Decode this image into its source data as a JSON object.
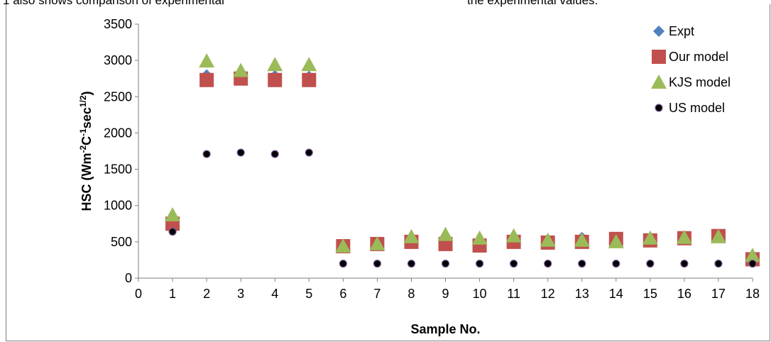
{
  "header_text": {
    "left": "also  shows  comparison  of  experimental",
    "right": "the experimental values."
  },
  "chart_data": {
    "type": "scatter",
    "title": "",
    "xlabel": "Sample No.",
    "ylabel": {
      "base": "HSC (Wm",
      "sup1": "-2",
      "mid1": "C",
      "sup2": "-1",
      "mid2": "sec",
      "sup3": "1/2",
      "end": ")"
    },
    "xlim": [
      0,
      18
    ],
    "ylim": [
      0,
      3500
    ],
    "xticks": [
      0,
      1,
      2,
      3,
      4,
      5,
      6,
      7,
      8,
      9,
      10,
      11,
      12,
      13,
      14,
      15,
      16,
      17,
      18
    ],
    "yticks": [
      0,
      500,
      1000,
      1500,
      2000,
      2500,
      3000,
      3500
    ],
    "grid": false,
    "legend_position": "top-right",
    "series": [
      {
        "name": "Expt",
        "marker": "diamond",
        "color": "#4f81bd",
        "x": [
          1,
          2,
          3,
          4,
          5,
          6,
          7,
          8,
          9,
          10,
          11,
          12,
          13,
          14,
          15,
          16,
          17,
          18
        ],
        "y": [
          780,
          2800,
          2790,
          2790,
          2780,
          450,
          480,
          540,
          520,
          470,
          550,
          500,
          560,
          520,
          530,
          560,
          570,
          280
        ]
      },
      {
        "name": "Our model",
        "marker": "square",
        "color": "#c0504d",
        "x": [
          1,
          2,
          3,
          4,
          5,
          6,
          7,
          8,
          9,
          10,
          11,
          12,
          13,
          14,
          15,
          16,
          17,
          18
        ],
        "y": [
          750,
          2730,
          2750,
          2730,
          2730,
          440,
          470,
          500,
          470,
          450,
          500,
          490,
          500,
          540,
          520,
          550,
          580,
          260
        ]
      },
      {
        "name": "KJS model",
        "marker": "triangle",
        "color": "#9bbb59",
        "x": [
          1,
          2,
          3,
          4,
          5,
          6,
          7,
          8,
          9,
          10,
          11,
          12,
          13,
          14,
          15,
          16,
          17,
          18
        ],
        "y": [
          870,
          2990,
          2860,
          2940,
          2940,
          440,
          470,
          570,
          600,
          550,
          580,
          520,
          520,
          500,
          550,
          560,
          570,
          310
        ]
      },
      {
        "name": "US model",
        "marker": "circle",
        "color": "#000000",
        "x": [
          1,
          2,
          3,
          4,
          5,
          6,
          7,
          8,
          9,
          10,
          11,
          12,
          13,
          14,
          15,
          16,
          17,
          18
        ],
        "y": [
          640,
          1710,
          1730,
          1710,
          1730,
          200,
          200,
          200,
          200,
          200,
          200,
          200,
          200,
          200,
          200,
          200,
          200,
          200
        ]
      }
    ]
  }
}
